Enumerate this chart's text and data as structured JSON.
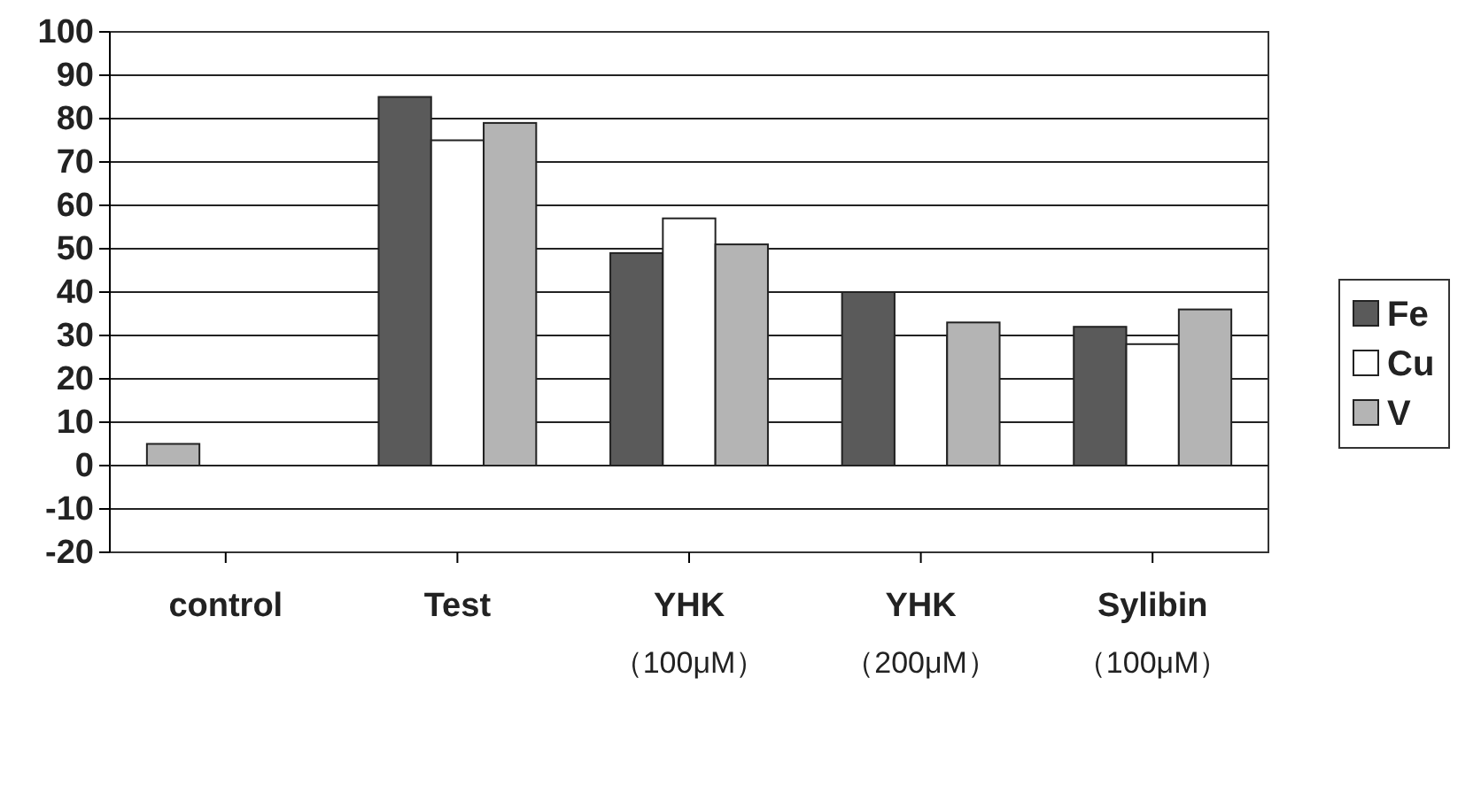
{
  "chart_data": {
    "type": "bar",
    "categories": [
      "control",
      "Test",
      "YHK\n（100μM）",
      "YHK\n（200μM）",
      "Sylibin\n（100μM）"
    ],
    "series": [
      {
        "name": "Fe",
        "color": "#5a5a5a",
        "colors": [
          "#b4b4b4",
          "#5a5a5a",
          "#5a5a5a",
          "#5a5a5a",
          "#5a5a5a"
        ],
        "values": [
          5,
          85,
          49,
          40,
          32
        ]
      },
      {
        "name": "Cu",
        "color": "#ffffff",
        "values": [
          null,
          75,
          57,
          30,
          28
        ]
      },
      {
        "name": "V",
        "color": "#b4b4b4",
        "values": [
          null,
          79,
          51,
          33,
          36
        ]
      }
    ],
    "ylim": [
      -20,
      100
    ],
    "yticks": [
      -20,
      -10,
      0,
      10,
      20,
      30,
      40,
      50,
      60,
      70,
      80,
      90,
      100
    ],
    "grid": "y",
    "legend": "right"
  }
}
